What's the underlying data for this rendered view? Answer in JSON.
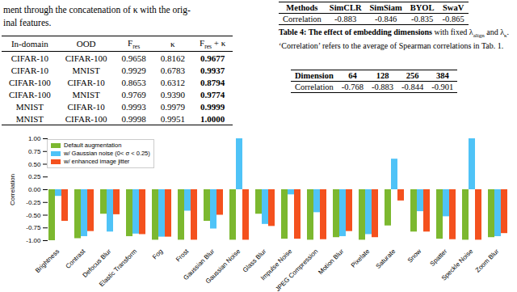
{
  "text": {
    "lines": [
      "ment through the concatenation of κ with the orig-",
      "inal features."
    ]
  },
  "table_left": {
    "header": [
      [
        {
          "t": "In-domain"
        }
      ],
      [
        {
          "t": "OOD"
        }
      ],
      [
        {
          "t": "F"
        },
        {
          "sub": "res"
        }
      ],
      [
        {
          "t": "κ"
        }
      ],
      [
        {
          "t": "F"
        },
        {
          "sub": "res"
        },
        {
          "t": " + κ"
        }
      ]
    ],
    "rows": [
      [
        "CIFAR-10",
        "CIFAR-100",
        "0.9658",
        "0.8162",
        {
          "t": "0.9677",
          "bold": true
        }
      ],
      [
        "CIFAR-10",
        "MNIST",
        "0.9929",
        "0.6783",
        {
          "t": "0.9937",
          "bold": true
        }
      ],
      [
        "CIFAR-100",
        "CIFAR-10",
        "0.8653",
        "0.6312",
        {
          "t": "0.8794",
          "bold": true
        }
      ],
      [
        "CIFAR-100",
        "MNIST",
        "0.9769",
        "0.9390",
        {
          "t": "0.9774",
          "bold": true
        }
      ],
      [
        "MNIST",
        "CIFAR-10",
        "0.9993",
        "0.9979",
        {
          "t": "0.9999",
          "bold": true
        }
      ],
      [
        "MNIST",
        "CIFAR-100",
        "0.9998",
        "0.9951",
        {
          "t": "1.0000",
          "bold": true
        }
      ]
    ]
  },
  "table_methods": {
    "header": [
      "Methods",
      "SimCLR",
      "SimSiam",
      "BYOL",
      "SwaV"
    ],
    "rows": [
      [
        "Correlation",
        "-0.883",
        "-0.846",
        "-0.835",
        "-0.865"
      ]
    ]
  },
  "table4": {
    "caption": [
      {
        "t": "Table 4: The effect of embedding dimensions",
        "bold": true
      },
      {
        "t": " with fixed λ"
      },
      {
        "sub": "align"
      },
      {
        "t": " and λ"
      },
      {
        "sub": "κ"
      },
      {
        "t": ". ‘Correlation’ refers to the average of Spearman correlations in Tab. 1."
      }
    ],
    "header": [
      "Dimension",
      "64",
      "128",
      "256",
      "384"
    ],
    "rows": [
      [
        "Correlation",
        "-0.768",
        "-0.883",
        "-0.844",
        "-0.901"
      ]
    ]
  },
  "chart_data": {
    "type": "bar",
    "y_label": "Correlation",
    "categories": [
      "Brightness",
      "Contrast",
      "Defocus Blur",
      "Elastic Transform",
      "Fog",
      "Frost",
      "Gaussian Blur",
      "Gaussian Noise",
      "Glass Blur",
      "Impulse Noise",
      "JPEG Compression",
      "Motion Blur",
      "Pixelate",
      "Saturate",
      "Snow",
      "Spatter",
      "Speckle Noise",
      "Zoom Blur"
    ],
    "series": [
      {
        "name": "Default augmentation",
        "color": "#7cb82f",
        "values": [
          -1.0,
          -0.96,
          -0.48,
          -0.92,
          -0.99,
          -0.99,
          -0.62,
          -0.99,
          -0.48,
          -0.97,
          -0.99,
          -0.94,
          -0.99,
          -0.71,
          -0.83,
          -0.97,
          -0.99,
          -0.94
        ]
      },
      {
        "name": "w/ Gaussian noise (0< σ < 0.25)",
        "color": "#4fc3f7",
        "values": [
          -0.13,
          -0.92,
          -0.83,
          -0.87,
          -0.93,
          -0.42,
          -0.77,
          1.0,
          -0.68,
          -0.1,
          -0.45,
          -0.92,
          -0.88,
          0.6,
          -0.43,
          -0.53,
          1.0,
          -0.92
        ]
      },
      {
        "name": "w/ enhanced image jitter",
        "color": "#f4511e",
        "values": [
          -0.62,
          -0.82,
          -0.49,
          -0.88,
          -0.93,
          -0.99,
          -0.5,
          -0.99,
          -0.72,
          -0.97,
          -0.98,
          -0.82,
          -0.94,
          -0.22,
          -0.83,
          -0.98,
          -0.99,
          -0.86
        ]
      }
    ],
    "ylim": [
      -1.0,
      1.0
    ],
    "yticks": [
      {
        "value": -1.0,
        "label": "-1.00"
      },
      {
        "value": -0.75,
        "label": "-0.75"
      },
      {
        "value": -0.5,
        "label": "-0.50"
      },
      {
        "value": -0.25,
        "label": "-0.25"
      },
      {
        "value": 0,
        "label": "0.00"
      },
      {
        "value": 0.25,
        "label": "0.25"
      },
      {
        "value": 0.5,
        "label": "0.50"
      },
      {
        "value": 0.75,
        "label": "0.75"
      },
      {
        "value": 1.0,
        "label": "1.00"
      }
    ],
    "grid": false,
    "legend": "upper left"
  }
}
